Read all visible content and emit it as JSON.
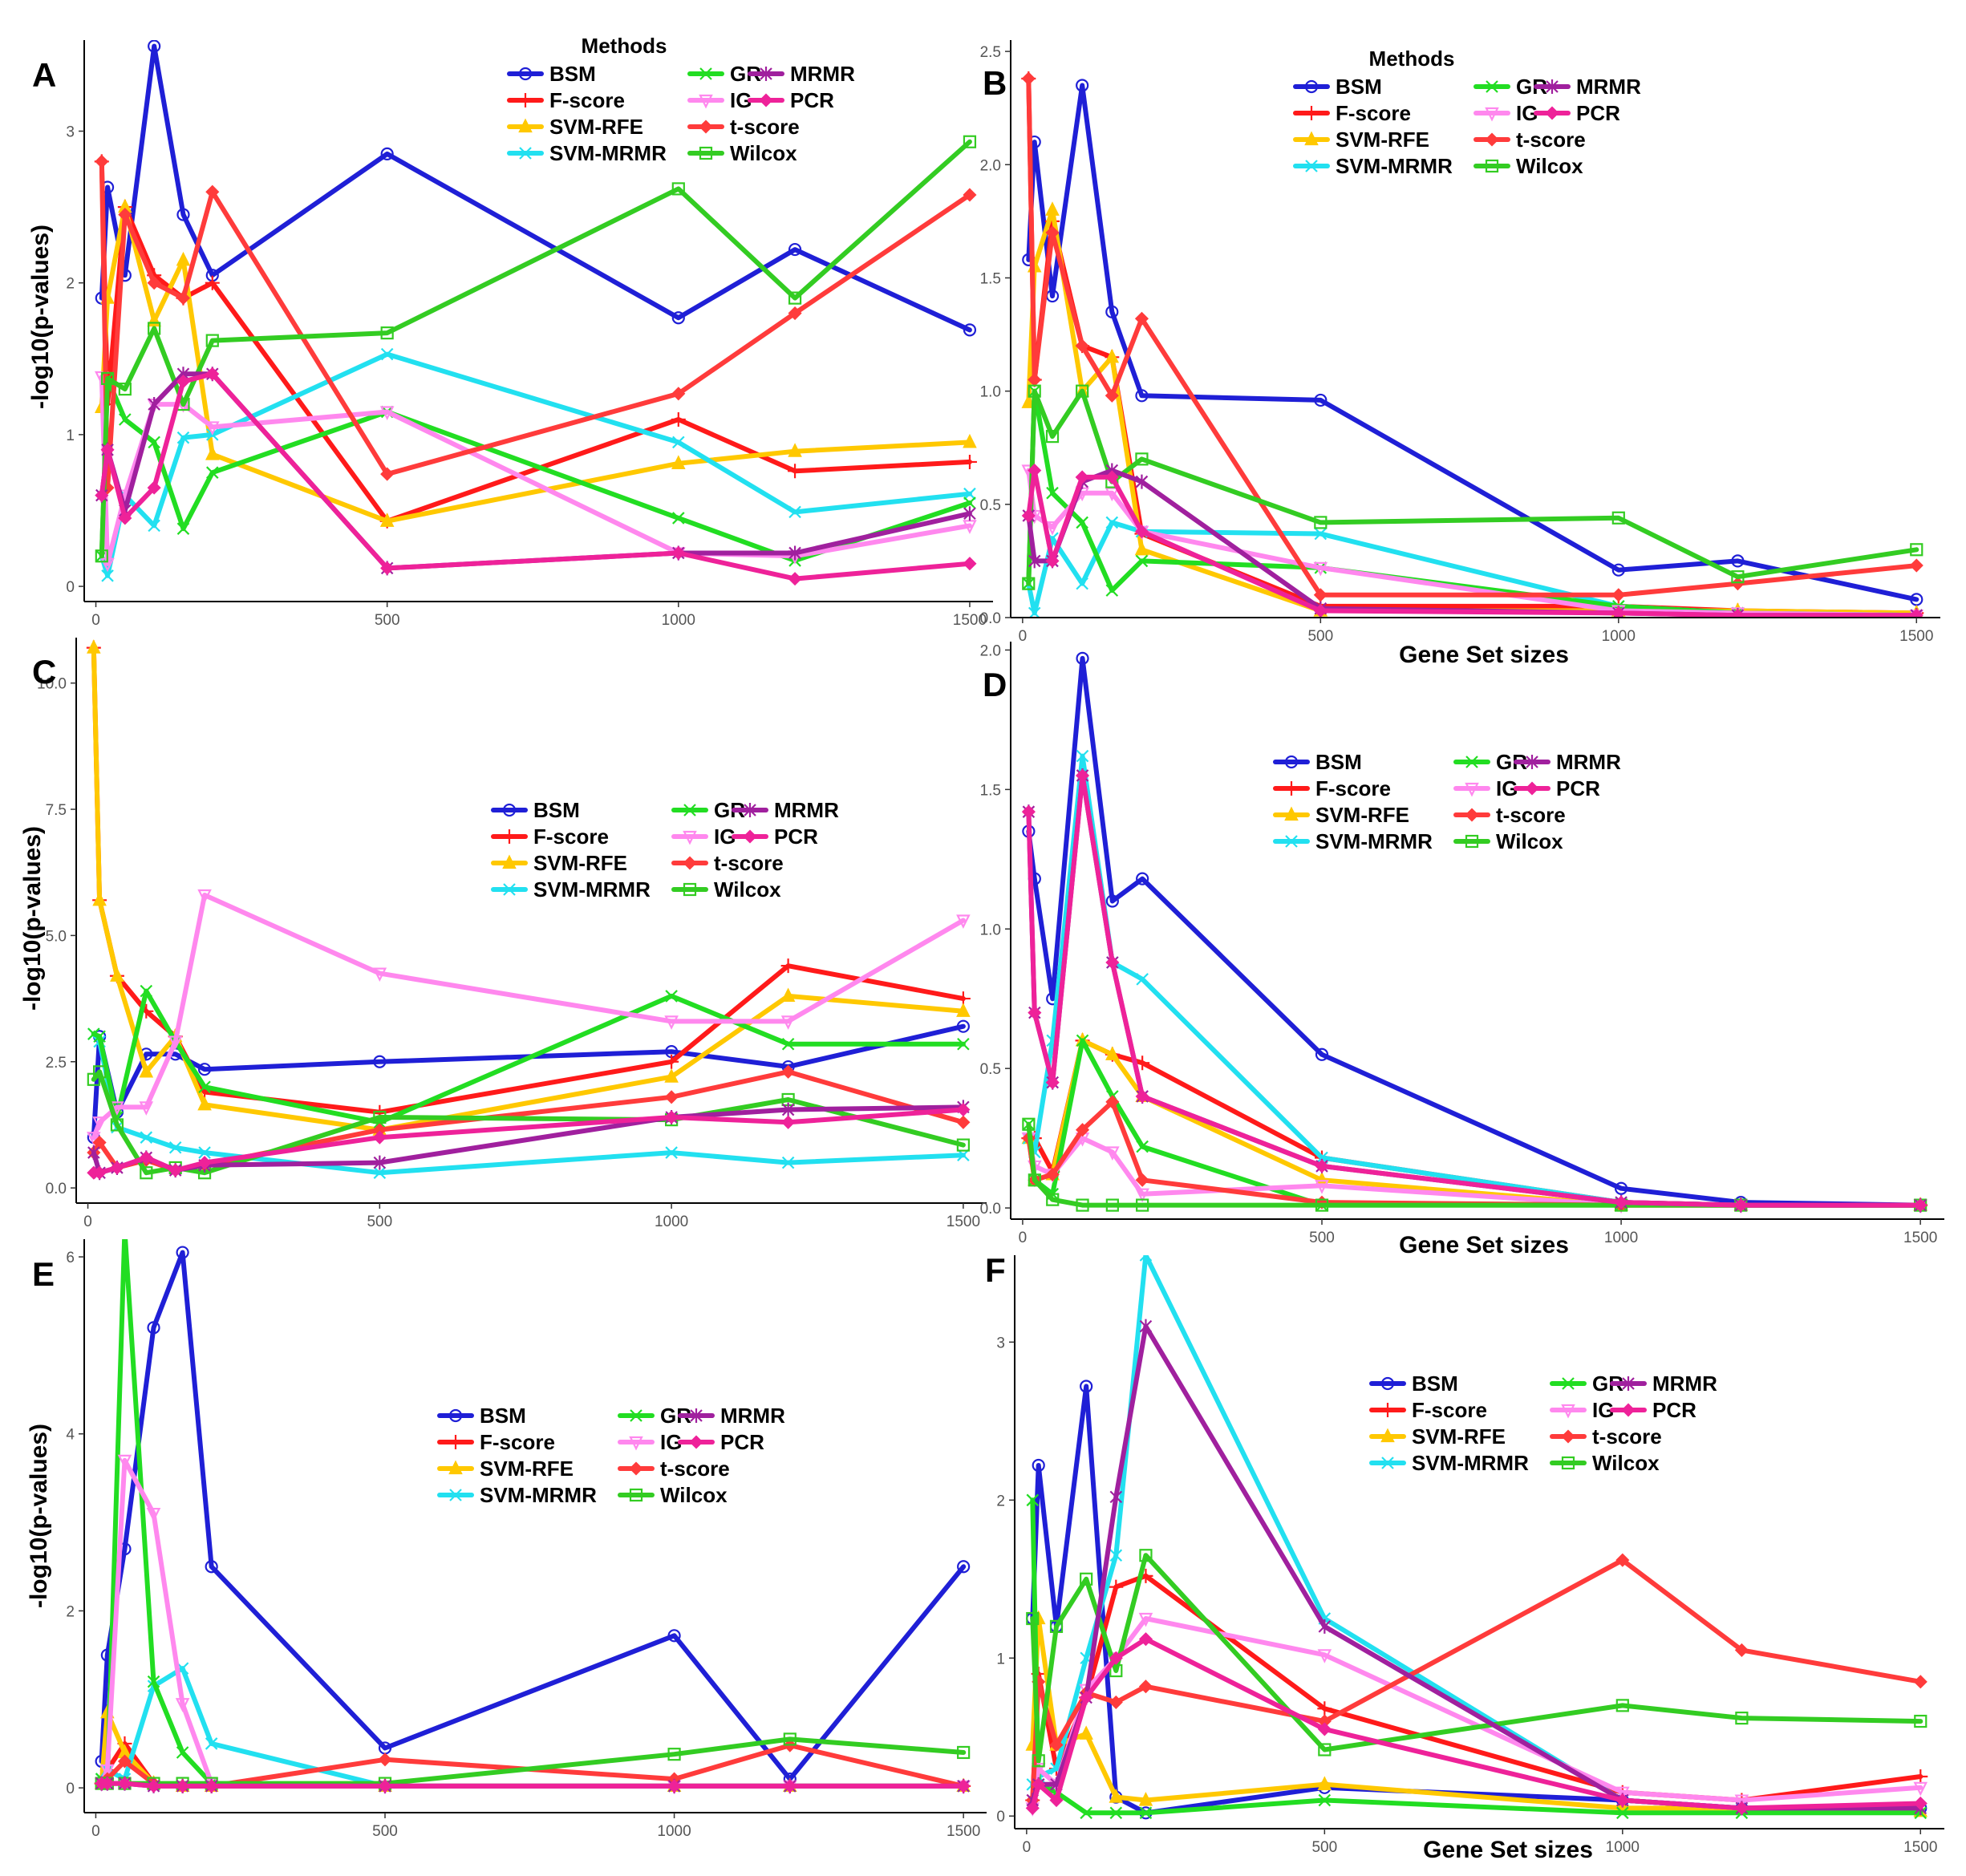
{
  "colors": {
    "BSM": "#1f1fd6",
    "F-score": "#ff1a1a",
    "SVM-RFE": "#ffc800",
    "SVM-MRMR": "#22e0f0",
    "GR": "#22dd22",
    "IG": "#ff88ee",
    "t-score": "#ff3b3b",
    "Wilcox": "#33cc22",
    "MRMR": "#a0209e",
    "PCR": "#ee2299"
  },
  "chart_data": [
    {
      "id": "A",
      "panel_label": "A",
      "type": "line",
      "xlabel": "",
      "ylabel": "-log10(p-values)",
      "xlim": [
        -20,
        1540
      ],
      "ylim": [
        -0.1,
        3.6
      ],
      "xticks": [
        0,
        500,
        1000,
        1500
      ],
      "yticks": [
        0,
        1,
        2,
        3
      ],
      "legend_title": "Methods",
      "x": [
        10,
        20,
        50,
        100,
        150,
        200,
        500,
        1000,
        1200,
        1500
      ],
      "series": [
        {
          "name": "BSM",
          "values": [
            1.9,
            2.63,
            2.05,
            3.56,
            2.45,
            2.05,
            2.85,
            1.77,
            2.22,
            1.69
          ]
        },
        {
          "name": "F-score",
          "values": [
            2.8,
            1.2,
            2.5,
            2.05,
            1.9,
            2.0,
            0.43,
            1.1,
            0.76,
            0.82
          ]
        },
        {
          "name": "SVM-RFE",
          "values": [
            1.18,
            1.9,
            2.5,
            1.75,
            2.15,
            0.87,
            0.43,
            0.81,
            0.89,
            0.95
          ]
        },
        {
          "name": "SVM-MRMR",
          "values": [
            0.2,
            0.07,
            0.6,
            0.4,
            0.98,
            1.0,
            1.53,
            0.95,
            0.49,
            0.61
          ]
        },
        {
          "name": "GR",
          "values": [
            0.2,
            1.37,
            1.1,
            0.95,
            0.38,
            0.75,
            1.15,
            0.45,
            0.17,
            0.55
          ]
        },
        {
          "name": "IG",
          "values": [
            1.38,
            0.15,
            0.6,
            1.2,
            1.2,
            1.05,
            1.15,
            0.22,
            0.2,
            0.4
          ]
        },
        {
          "name": "t-score",
          "values": [
            2.8,
            0.65,
            2.45,
            2.0,
            1.9,
            2.6,
            0.74,
            1.27,
            1.8,
            2.58
          ]
        },
        {
          "name": "Wilcox",
          "values": [
            0.2,
            1.37,
            1.3,
            1.7,
            1.2,
            1.62,
            1.67,
            2.62,
            1.9,
            2.93
          ]
        },
        {
          "name": "MRMR",
          "values": [
            0.6,
            0.9,
            0.5,
            1.2,
            1.4,
            1.4,
            0.12,
            0.22,
            0.22,
            0.48
          ]
        },
        {
          "name": "PCR",
          "values": [
            0.6,
            0.9,
            0.45,
            0.65,
            1.35,
            1.4,
            0.12,
            0.22,
            0.05,
            0.15
          ]
        }
      ]
    },
    {
      "id": "B",
      "panel_label": "B",
      "type": "line",
      "xlabel": "Gene Set sizes",
      "ylabel": "",
      "xlim": [
        -20,
        1540
      ],
      "ylim": [
        0,
        2.55
      ],
      "xticks": [
        0,
        500,
        1000,
        1500
      ],
      "yticks": [
        0.0,
        0.5,
        1.0,
        1.5,
        2.0,
        2.5
      ],
      "legend_title": "Methods",
      "x": [
        10,
        20,
        50,
        100,
        150,
        200,
        500,
        1000,
        1200,
        1500
      ],
      "series": [
        {
          "name": "BSM",
          "values": [
            1.58,
            2.1,
            1.42,
            2.35,
            1.35,
            0.98,
            0.96,
            0.21,
            0.25,
            0.08
          ]
        },
        {
          "name": "F-score",
          "values": [
            2.38,
            1.05,
            1.75,
            1.2,
            1.15,
            0.37,
            0.05,
            0.05,
            0.03,
            0.02
          ]
        },
        {
          "name": "SVM-RFE",
          "values": [
            0.95,
            1.55,
            1.8,
            1.0,
            1.15,
            0.3,
            0.03,
            0.03,
            0.03,
            0.02
          ]
        },
        {
          "name": "SVM-MRMR",
          "values": [
            0.15,
            0.02,
            0.35,
            0.15,
            0.42,
            0.38,
            0.37,
            0.05,
            0.02,
            0.01
          ]
        },
        {
          "name": "GR",
          "values": [
            0.15,
            1.0,
            0.55,
            0.42,
            0.12,
            0.25,
            0.22,
            0.05,
            0.02,
            0.01
          ]
        },
        {
          "name": "IG",
          "values": [
            0.65,
            0.45,
            0.4,
            0.55,
            0.55,
            0.38,
            0.22,
            0.03,
            0.02,
            0.01
          ]
        },
        {
          "name": "t-score",
          "values": [
            2.38,
            1.05,
            1.7,
            1.2,
            0.98,
            1.32,
            0.1,
            0.1,
            0.15,
            0.23
          ]
        },
        {
          "name": "Wilcox",
          "values": [
            0.15,
            1.0,
            0.8,
            1.0,
            0.6,
            0.7,
            0.42,
            0.44,
            0.18,
            0.3
          ]
        },
        {
          "name": "MRMR",
          "values": [
            0.45,
            0.25,
            0.25,
            0.6,
            0.65,
            0.6,
            0.04,
            0.02,
            0.01,
            0.01
          ]
        },
        {
          "name": "PCR",
          "values": [
            0.45,
            0.65,
            0.25,
            0.62,
            0.62,
            0.38,
            0.03,
            0.02,
            0.01,
            0.01
          ]
        }
      ]
    },
    {
      "id": "C",
      "panel_label": "C",
      "type": "line",
      "xlabel": "",
      "ylabel": "-log10(p-values)",
      "xlim": [
        -20,
        1540
      ],
      "ylim": [
        -0.3,
        10.9
      ],
      "xticks": [
        0,
        500,
        1000,
        1500
      ],
      "yticks": [
        0.0,
        2.5,
        5.0,
        7.5,
        10.0
      ],
      "legend_title": "",
      "x": [
        10,
        20,
        50,
        100,
        150,
        200,
        500,
        1000,
        1200,
        1500
      ],
      "series": [
        {
          "name": "BSM",
          "values": [
            1.0,
            3.0,
            1.5,
            2.65,
            2.65,
            2.35,
            2.5,
            2.7,
            2.4,
            3.2
          ]
        },
        {
          "name": "F-score",
          "values": [
            10.7,
            5.7,
            4.2,
            3.5,
            3.0,
            1.9,
            1.5,
            2.5,
            4.4,
            3.75
          ]
        },
        {
          "name": "SVM-RFE",
          "values": [
            10.7,
            5.7,
            4.2,
            2.3,
            3.0,
            1.65,
            1.15,
            2.2,
            3.8,
            3.5
          ]
        },
        {
          "name": "SVM-MRMR",
          "values": [
            3.05,
            2.9,
            1.2,
            1.0,
            0.8,
            0.7,
            0.3,
            0.7,
            0.5,
            0.65
          ]
        },
        {
          "name": "GR",
          "values": [
            3.05,
            3.0,
            1.4,
            3.9,
            2.9,
            2.0,
            1.3,
            3.8,
            2.85,
            2.85
          ]
        },
        {
          "name": "IG",
          "values": [
            1.0,
            1.3,
            1.6,
            1.6,
            2.9,
            5.8,
            4.25,
            3.3,
            3.3,
            5.3
          ]
        },
        {
          "name": "t-score",
          "values": [
            0.7,
            0.9,
            0.4,
            0.55,
            0.35,
            0.45,
            1.15,
            1.8,
            2.3,
            1.3
          ]
        },
        {
          "name": "Wilcox",
          "values": [
            2.15,
            2.3,
            1.25,
            0.3,
            0.4,
            0.3,
            1.4,
            1.35,
            1.75,
            0.85
          ]
        },
        {
          "name": "MRMR",
          "values": [
            0.7,
            0.3,
            0.4,
            0.6,
            0.35,
            0.45,
            0.5,
            1.4,
            1.55,
            1.6
          ]
        },
        {
          "name": "PCR",
          "values": [
            0.3,
            0.3,
            0.4,
            0.6,
            0.35,
            0.5,
            1.0,
            1.4,
            1.3,
            1.55
          ]
        }
      ]
    },
    {
      "id": "D",
      "panel_label": "D",
      "type": "line",
      "xlabel": "Gene Set sizes",
      "ylabel": "",
      "xlim": [
        -20,
        1540
      ],
      "ylim": [
        -0.04,
        2.03
      ],
      "xticks": [
        0,
        500,
        1000,
        1500
      ],
      "yticks": [
        0.0,
        0.5,
        1.0,
        1.5,
        2.0
      ],
      "legend_title": "",
      "x": [
        10,
        20,
        50,
        100,
        150,
        200,
        500,
        1000,
        1200,
        1500
      ],
      "series": [
        {
          "name": "BSM",
          "values": [
            1.35,
            1.18,
            0.75,
            1.97,
            1.1,
            1.18,
            0.55,
            0.07,
            0.02,
            0.01
          ]
        },
        {
          "name": "F-score",
          "values": [
            0.25,
            0.25,
            0.13,
            0.6,
            0.55,
            0.52,
            0.18,
            0.02,
            0.01,
            0.01
          ]
        },
        {
          "name": "SVM-RFE",
          "values": [
            0.25,
            0.1,
            0.12,
            0.6,
            0.55,
            0.4,
            0.1,
            0.01,
            0.01,
            0.01
          ]
        },
        {
          "name": "SVM-MRMR",
          "values": [
            0.25,
            0.2,
            0.6,
            1.62,
            0.88,
            0.82,
            0.18,
            0.02,
            0.01,
            0.01
          ]
        },
        {
          "name": "GR",
          "values": [
            0.3,
            0.1,
            0.05,
            0.6,
            0.4,
            0.22,
            0.01,
            0.01,
            0.01,
            0.01
          ]
        },
        {
          "name": "IG",
          "values": [
            0.25,
            0.15,
            0.12,
            0.25,
            0.2,
            0.05,
            0.08,
            0.01,
            0.01,
            0.01
          ]
        },
        {
          "name": "t-score",
          "values": [
            0.25,
            0.1,
            0.12,
            0.28,
            0.38,
            0.1,
            0.02,
            0.01,
            0.01,
            0.01
          ]
        },
        {
          "name": "Wilcox",
          "values": [
            0.3,
            0.1,
            0.03,
            0.01,
            0.01,
            0.01,
            0.01,
            0.01,
            0.01,
            0.01
          ]
        },
        {
          "name": "MRMR",
          "values": [
            1.42,
            0.7,
            0.45,
            1.55,
            0.88,
            0.4,
            0.15,
            0.02,
            0.01,
            0.01
          ]
        },
        {
          "name": "PCR",
          "values": [
            1.42,
            0.7,
            0.45,
            1.55,
            0.88,
            0.4,
            0.15,
            0.02,
            0.01,
            0.01
          ]
        }
      ]
    },
    {
      "id": "E",
      "panel_label": "E",
      "type": "line",
      "xlabel": "",
      "ylabel": "-log10(p-values)",
      "xlim": [
        -20,
        1540
      ],
      "ylim": [
        -0.28,
        6.2
      ],
      "xticks": [
        0,
        500,
        1000,
        1500
      ],
      "yticks": [
        0,
        2,
        4,
        6
      ],
      "legend_title": "",
      "x": [
        10,
        20,
        50,
        100,
        150,
        200,
        500,
        1000,
        1200,
        1500
      ],
      "series": [
        {
          "name": "BSM",
          "values": [
            0.3,
            1.5,
            2.7,
            5.2,
            6.05,
            2.5,
            0.45,
            1.72,
            0.1,
            2.5
          ]
        },
        {
          "name": "F-score",
          "values": [
            0.05,
            0.2,
            0.5,
            0.05,
            0.02,
            0.02,
            0.02,
            0.02,
            0.02,
            0.02
          ]
        },
        {
          "name": "SVM-RFE",
          "values": [
            0.05,
            0.85,
            0.4,
            0.05,
            0.02,
            0.02,
            0.02,
            0.02,
            0.02,
            0.02
          ]
        },
        {
          "name": "SVM-MRMR",
          "values": [
            0.1,
            0.2,
            0.1,
            1.15,
            1.35,
            0.5,
            0.02,
            0.02,
            0.02,
            0.02
          ]
        },
        {
          "name": "GR",
          "values": [
            0.1,
            0.05,
            6.3,
            1.2,
            0.4,
            0.05,
            0.02,
            0.02,
            0.02,
            0.02
          ]
        },
        {
          "name": "IG",
          "values": [
            0.05,
            0.2,
            3.7,
            3.1,
            0.95,
            0.05,
            0.02,
            0.02,
            0.02,
            0.02
          ]
        },
        {
          "name": "t-score",
          "values": [
            0.05,
            0.1,
            0.3,
            0.05,
            0.02,
            0.02,
            0.32,
            0.1,
            0.48,
            0.02
          ]
        },
        {
          "name": "Wilcox",
          "values": [
            0.05,
            0.05,
            0.05,
            0.05,
            0.05,
            0.05,
            0.05,
            0.38,
            0.55,
            0.4
          ]
        },
        {
          "name": "MRMR",
          "values": [
            0.05,
            0.05,
            0.05,
            0.02,
            0.02,
            0.02,
            0.02,
            0.02,
            0.02,
            0.02
          ]
        },
        {
          "name": "PCR",
          "values": [
            0.05,
            0.05,
            0.05,
            0.02,
            0.02,
            0.02,
            0.02,
            0.02,
            0.02,
            0.02
          ]
        }
      ]
    },
    {
      "id": "F",
      "panel_label": "F",
      "type": "line",
      "xlabel": "Gene Set sizes",
      "ylabel": "",
      "xlim": [
        -20,
        1540
      ],
      "ylim": [
        -0.08,
        3.55
      ],
      "xticks": [
        0,
        500,
        1000,
        1500
      ],
      "yticks": [
        0,
        1,
        2,
        3
      ],
      "legend_title": "",
      "x": [
        10,
        20,
        50,
        100,
        150,
        200,
        500,
        1000,
        1200,
        1500
      ],
      "series": [
        {
          "name": "BSM",
          "values": [
            1.25,
            2.22,
            1.2,
            2.72,
            0.12,
            0.02,
            0.18,
            0.1,
            0.05,
            0.05
          ]
        },
        {
          "name": "F-score",
          "values": [
            0.1,
            0.9,
            0.3,
            0.75,
            1.45,
            1.52,
            0.68,
            0.15,
            0.1,
            0.25
          ]
        },
        {
          "name": "SVM-RFE",
          "values": [
            0.45,
            1.25,
            0.45,
            0.52,
            0.12,
            0.1,
            0.2,
            0.05,
            0.05,
            0.03
          ]
        },
        {
          "name": "SVM-MRMR",
          "values": [
            0.2,
            0.25,
            0.3,
            1.0,
            1.65,
            3.55,
            1.25,
            0.1,
            0.05,
            0.05
          ]
        },
        {
          "name": "GR",
          "values": [
            2.0,
            0.2,
            0.15,
            0.02,
            0.02,
            0.02,
            0.1,
            0.02,
            0.02,
            0.02
          ]
        },
        {
          "name": "IG",
          "values": [
            0.05,
            0.3,
            0.2,
            0.8,
            1.0,
            1.25,
            1.02,
            0.15,
            0.1,
            0.18
          ]
        },
        {
          "name": "t-score",
          "values": [
            0.1,
            0.85,
            0.45,
            0.78,
            0.72,
            0.82,
            0.6,
            1.62,
            1.05,
            0.85
          ]
        },
        {
          "name": "Wilcox",
          "values": [
            1.25,
            0.35,
            1.2,
            1.5,
            0.92,
            1.65,
            0.42,
            0.7,
            0.62,
            0.6
          ]
        },
        {
          "name": "MRMR",
          "values": [
            0.1,
            0.2,
            0.2,
            0.75,
            2.02,
            3.1,
            1.2,
            0.1,
            0.05,
            0.05
          ]
        },
        {
          "name": "PCR",
          "values": [
            0.05,
            0.2,
            0.1,
            0.75,
            1.0,
            1.12,
            0.55,
            0.1,
            0.05,
            0.08
          ]
        }
      ]
    }
  ]
}
